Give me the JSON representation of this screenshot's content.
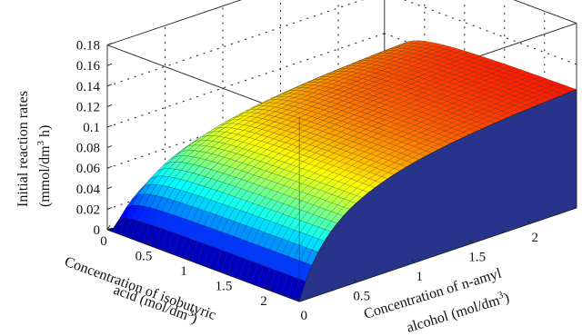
{
  "chart_data": {
    "type": "surface3d",
    "title": "",
    "z_axis": {
      "label_line1": "Initial reaction rates",
      "label_line2_prefix": "(mmol/dm",
      "label_line2_sup": "3",
      "label_line2_suffix": " h)",
      "ticks": [
        "0",
        "0.02",
        "0.04",
        "0.06",
        "0.08",
        "0.1",
        "0.12",
        "0.14",
        "0.16",
        "0.18"
      ],
      "range": [
        0,
        0.18
      ]
    },
    "x_axis": {
      "label_line1": "Concentration of isobutyric",
      "label_line2_prefix": "acid (mol/dm",
      "label_line2_sup": "3",
      "label_line2_suffix": ")",
      "ticks": [
        "0",
        "0.5",
        "1",
        "1.5",
        "2"
      ],
      "range": [
        0,
        2.4
      ]
    },
    "y_axis": {
      "label_line1": "Concentration of n-amyl",
      "label_line2_prefix": "alcohol (mol/dm",
      "label_line2_sup": "3",
      "label_line2_suffix": ")",
      "ticks": [
        "0",
        "0.5",
        "1",
        "1.5",
        "2"
      ],
      "range": [
        0,
        2.4
      ]
    },
    "surface": {
      "description_model": "rate rises steeply with acid concentration and saturates; low near zero alcohol",
      "vmax": 0.135,
      "ka": 0.05,
      "kb": 0.35,
      "colormap": "jet",
      "grid": "dotted"
    }
  }
}
